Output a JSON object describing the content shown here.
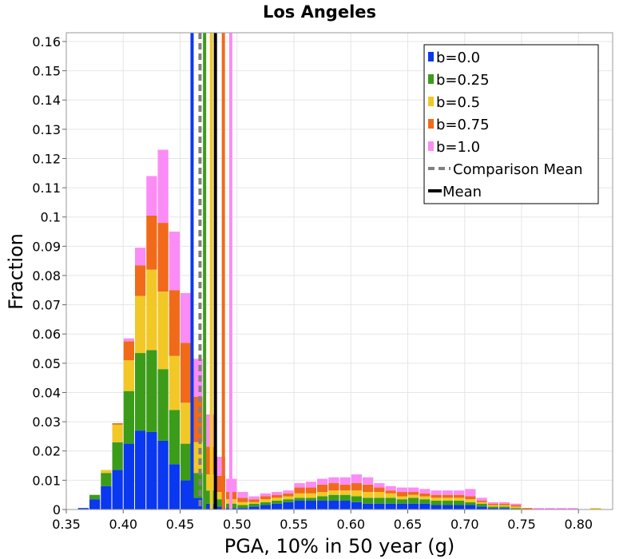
{
  "chart_data": {
    "type": "bar",
    "title": "Los Angeles",
    "xlabel": "PGA, 10% in 50 year (g)",
    "ylabel": "Fraction",
    "xlim": [
      0.35,
      0.83
    ],
    "ylim": [
      0,
      0.163
    ],
    "x_ticks": [
      0.35,
      0.4,
      0.45,
      0.5,
      0.55,
      0.6,
      0.65,
      0.7,
      0.75,
      0.8
    ],
    "x_tick_labels": [
      "0.35",
      "0.40",
      "0.45",
      "0.50",
      "0.55",
      "0.60",
      "0.65",
      "0.70",
      "0.75",
      "0.80"
    ],
    "y_ticks": [
      0,
      0.01,
      0.02,
      0.03,
      0.04,
      0.05,
      0.06,
      0.07,
      0.08,
      0.09,
      0.1,
      0.11,
      0.12,
      0.13,
      0.14,
      0.15,
      0.16
    ],
    "y_tick_labels": [
      "0",
      "0.01",
      "0.02",
      "0.03",
      "0.04",
      "0.05",
      "0.06",
      "0.07",
      "0.08",
      "0.09",
      "0.1",
      "0.11",
      "0.12",
      "0.13",
      "0.14",
      "0.15",
      "0.16"
    ],
    "grid": true,
    "stacked": true,
    "bin_width": 0.01,
    "bin_starts": [
      0.36,
      0.37,
      0.38,
      0.39,
      0.4,
      0.41,
      0.42,
      0.43,
      0.44,
      0.45,
      0.46,
      0.47,
      0.48,
      0.49,
      0.5,
      0.51,
      0.52,
      0.53,
      0.54,
      0.55,
      0.56,
      0.57,
      0.58,
      0.59,
      0.6,
      0.61,
      0.62,
      0.63,
      0.64,
      0.65,
      0.66,
      0.67,
      0.68,
      0.69,
      0.7,
      0.71,
      0.72,
      0.73,
      0.74,
      0.75,
      0.76,
      0.77,
      0.78,
      0.79,
      0.8,
      0.81
    ],
    "series": [
      {
        "name": "b=0.0",
        "color": "#0a37f0",
        "values": [
          0.0005,
          0.0035,
          0.008,
          0.0135,
          0.0225,
          0.027,
          0.0265,
          0.0235,
          0.0155,
          0.01,
          0.004,
          0.002,
          0.001,
          0.0005,
          0.0005,
          0.001,
          0.0015,
          0.002,
          0.0025,
          0.003,
          0.003,
          0.003,
          0.003,
          0.003,
          0.0025,
          0.002,
          0.002,
          0.002,
          0.002,
          0.002,
          0.002,
          0.0015,
          0.0015,
          0.0015,
          0.0015,
          0.001,
          0.0005,
          0.0005,
          0.0,
          0.0,
          0.0,
          0.0,
          0.0,
          0.0,
          0.0,
          0.0
        ]
      },
      {
        "name": "b=0.25",
        "color": "#3c9c1a",
        "values": [
          0.0,
          0.0015,
          0.0045,
          0.0095,
          0.018,
          0.0265,
          0.028,
          0.0245,
          0.0185,
          0.0125,
          0.0085,
          0.0045,
          0.0025,
          0.0015,
          0.001,
          0.001,
          0.001,
          0.001,
          0.001,
          0.001,
          0.001,
          0.0015,
          0.002,
          0.002,
          0.002,
          0.002,
          0.002,
          0.002,
          0.0015,
          0.002,
          0.0015,
          0.0015,
          0.0015,
          0.0015,
          0.001,
          0.001,
          0.0005,
          0.0005,
          0.0005,
          0.0,
          0.0,
          0.0,
          0.0,
          0.0,
          0.0,
          0.0
        ]
      },
      {
        "name": "b=0.5",
        "color": "#f2c827",
        "values": [
          0.0,
          0.0,
          0.001,
          0.006,
          0.0105,
          0.0195,
          0.0275,
          0.0265,
          0.0185,
          0.014,
          0.0105,
          0.0055,
          0.0025,
          0.0015,
          0.001,
          0.0005,
          0.001,
          0.001,
          0.001,
          0.0015,
          0.0015,
          0.0015,
          0.0015,
          0.0015,
          0.002,
          0.002,
          0.002,
          0.0015,
          0.001,
          0.001,
          0.001,
          0.001,
          0.001,
          0.001,
          0.001,
          0.0005,
          0.0005,
          0.0005,
          0.0005,
          0.0,
          0.0,
          0.0,
          0.0,
          0.0,
          0.0,
          0.0005
        ]
      },
      {
        "name": "b=0.75",
        "color": "#f06a1a",
        "values": [
          0.0,
          0.0,
          0.0,
          0.0005,
          0.0065,
          0.0105,
          0.0185,
          0.0235,
          0.0225,
          0.0205,
          0.0155,
          0.0095,
          0.0055,
          0.0025,
          0.0015,
          0.001,
          0.001,
          0.001,
          0.001,
          0.002,
          0.002,
          0.0025,
          0.0025,
          0.002,
          0.0025,
          0.0025,
          0.0015,
          0.001,
          0.0015,
          0.001,
          0.001,
          0.001,
          0.001,
          0.001,
          0.001,
          0.0005,
          0.0005,
          0.0005,
          0.0005,
          0.0005,
          0.0,
          0.0,
          0.0,
          0.0,
          0.0,
          0.0
        ]
      },
      {
        "name": "b=1.0",
        "color": "#fb8cf5",
        "values": [
          0.0,
          0.0,
          0.0,
          0.0,
          0.001,
          0.006,
          0.0135,
          0.025,
          0.02,
          0.017,
          0.013,
          0.011,
          0.0065,
          0.0045,
          0.002,
          0.001,
          0.001,
          0.001,
          0.001,
          0.0015,
          0.002,
          0.002,
          0.002,
          0.0025,
          0.003,
          0.0025,
          0.0015,
          0.0015,
          0.0015,
          0.0015,
          0.0015,
          0.0015,
          0.0015,
          0.0015,
          0.0025,
          0.001,
          0.0005,
          0.0005,
          0.0005,
          0.0,
          0.0005,
          0.0005,
          0.0005,
          0.0005,
          0.0,
          0.0
        ]
      }
    ],
    "mean_lines": [
      {
        "series": "b=0.0",
        "x": 0.4605,
        "color": "#0a37f0",
        "style": "solid"
      },
      {
        "series": "Comparison Mean",
        "x": 0.4675,
        "color": "#808080",
        "style": "dashed"
      },
      {
        "series": "b=0.25",
        "x": 0.4715,
        "color": "#3c9c1a",
        "style": "solid"
      },
      {
        "series": "b=0.5",
        "x": 0.4775,
        "color": "#f2c827",
        "style": "solid"
      },
      {
        "series": "Mean",
        "x": 0.481,
        "color": "#000000",
        "style": "solid"
      },
      {
        "series": "b=0.75",
        "x": 0.488,
        "color": "#f06a1a",
        "style": "solid"
      },
      {
        "series": "b=1.0",
        "x": 0.4945,
        "color": "#fb8cf5",
        "style": "solid"
      }
    ],
    "legend": {
      "position": "top-right",
      "entries": [
        {
          "label": "b=0.0",
          "color": "#0a37f0",
          "kind": "box"
        },
        {
          "label": "b=0.25",
          "color": "#3c9c1a",
          "kind": "box"
        },
        {
          "label": "b=0.5",
          "color": "#f2c827",
          "kind": "box"
        },
        {
          "label": "b=0.75",
          "color": "#f06a1a",
          "kind": "box"
        },
        {
          "label": "b=1.0",
          "color": "#fb8cf5",
          "kind": "box"
        },
        {
          "label": "Comparison Mean",
          "color": "#808080",
          "kind": "dashed"
        },
        {
          "label": "Mean",
          "color": "#000000",
          "kind": "solid"
        }
      ]
    }
  }
}
